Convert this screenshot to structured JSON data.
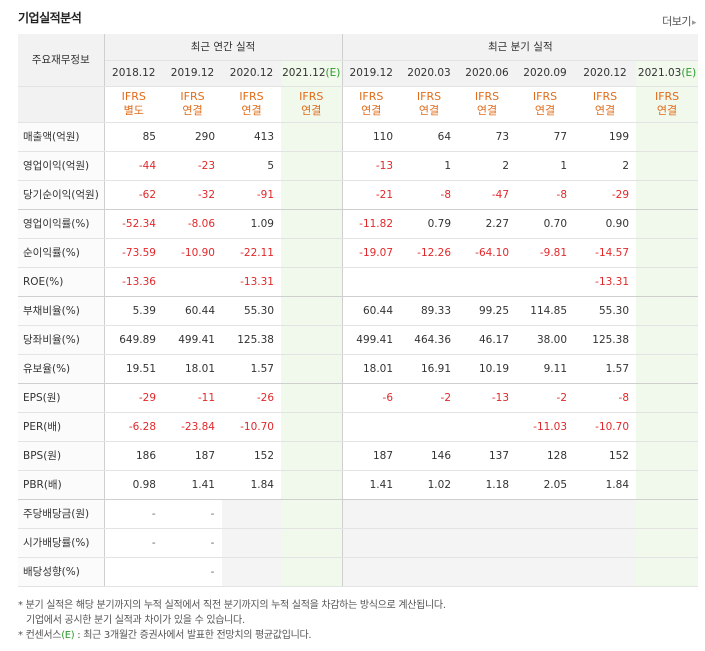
{
  "header": {
    "title": "기업실적분석",
    "more_label": "더보기",
    "more_arrow": "▸"
  },
  "table": {
    "corner_label": "주요재무정보",
    "annual_group_label": "최근 연간 실적",
    "quarter_group_label": "최근 분기 실적",
    "periods": [
      "2018.12",
      "2019.12",
      "2020.12",
      "2021.12(E)",
      "2019.12",
      "2020.03",
      "2020.06",
      "2020.09",
      "2020.12",
      "2021.03(E)"
    ],
    "ifrs_line1": [
      "IFRS",
      "IFRS",
      "IFRS",
      "IFRS",
      "IFRS",
      "IFRS",
      "IFRS",
      "IFRS",
      "IFRS",
      "IFRS"
    ],
    "ifrs_line2": [
      "별도",
      "연결",
      "연결",
      "연결",
      "연결",
      "연결",
      "연결",
      "연결",
      "연결",
      "연결"
    ],
    "rows": [
      {
        "label": "매출액(억원)",
        "values": [
          "85",
          "290",
          "413",
          "",
          "110",
          "64",
          "73",
          "77",
          "199",
          ""
        ]
      },
      {
        "label": "영업이익(억원)",
        "values": [
          "-44",
          "-23",
          "5",
          "",
          "-13",
          "1",
          "2",
          "1",
          "2",
          ""
        ]
      },
      {
        "label": "당기순이익(억원)",
        "values": [
          "-62",
          "-32",
          "-91",
          "",
          "-21",
          "-8",
          "-47",
          "-8",
          "-29",
          ""
        ]
      },
      {
        "label": "영업이익률(%)",
        "values": [
          "-52.34",
          "-8.06",
          "1.09",
          "",
          "-11.82",
          "0.79",
          "2.27",
          "0.70",
          "0.90",
          ""
        ]
      },
      {
        "label": "순이익률(%)",
        "values": [
          "-73.59",
          "-10.90",
          "-22.11",
          "",
          "-19.07",
          "-12.26",
          "-64.10",
          "-9.81",
          "-14.57",
          ""
        ]
      },
      {
        "label": "ROE(%)",
        "values": [
          "-13.36",
          "",
          "-13.31",
          "",
          "",
          "",
          "",
          "",
          "-13.31",
          ""
        ]
      },
      {
        "label": "부채비율(%)",
        "values": [
          "5.39",
          "60.44",
          "55.30",
          "",
          "60.44",
          "89.33",
          "99.25",
          "114.85",
          "55.30",
          ""
        ]
      },
      {
        "label": "당좌비율(%)",
        "values": [
          "649.89",
          "499.41",
          "125.38",
          "",
          "499.41",
          "464.36",
          "46.17",
          "38.00",
          "125.38",
          ""
        ]
      },
      {
        "label": "유보율(%)",
        "values": [
          "19.51",
          "18.01",
          "1.57",
          "",
          "18.01",
          "16.91",
          "10.19",
          "9.11",
          "1.57",
          ""
        ]
      },
      {
        "label": "EPS(원)",
        "values": [
          "-29",
          "-11",
          "-26",
          "",
          "-6",
          "-2",
          "-13",
          "-2",
          "-8",
          ""
        ]
      },
      {
        "label": "PER(배)",
        "values": [
          "-6.28",
          "-23.84",
          "-10.70",
          "",
          "",
          "",
          "",
          "-11.03",
          "-10.70",
          ""
        ]
      },
      {
        "label": "BPS(원)",
        "values": [
          "186",
          "187",
          "152",
          "",
          "187",
          "146",
          "137",
          "128",
          "152",
          ""
        ]
      },
      {
        "label": "PBR(배)",
        "values": [
          "0.98",
          "1.41",
          "1.84",
          "",
          "1.41",
          "1.02",
          "1.18",
          "2.05",
          "1.84",
          ""
        ]
      },
      {
        "label": "주당배당금(원)",
        "values": [
          "-",
          "-",
          "",
          "",
          "",
          "",
          "",
          "",
          "",
          ""
        ]
      },
      {
        "label": "시가배당률(%)",
        "values": [
          "-",
          "-",
          "",
          "",
          "",
          "",
          "",
          "",
          "",
          ""
        ]
      },
      {
        "label": "배당성향(%)",
        "values": [
          "",
          "-",
          "",
          "",
          "",
          "",
          "",
          "",
          "",
          ""
        ]
      }
    ]
  },
  "notes": {
    "line1": "* 분기 실적은 해당 분기까지의 누적 실적에서 직전 분기까지의 누적 실적을 차감하는 방식으로 계산됩니다.",
    "line2": "기업에서 공시한 분기 실적과 차이가 있을 수 있습니다.",
    "line3_pre": "* 컨센서스",
    "line3_e": "(E)",
    "line3_post": " : 최근 3개월간 증권사에서 발표한 전망치의 평균값입니다."
  },
  "colors": {
    "negative": "#e2282b",
    "ifrs": "#e06c1a",
    "estimate": "#2d9a2d"
  }
}
